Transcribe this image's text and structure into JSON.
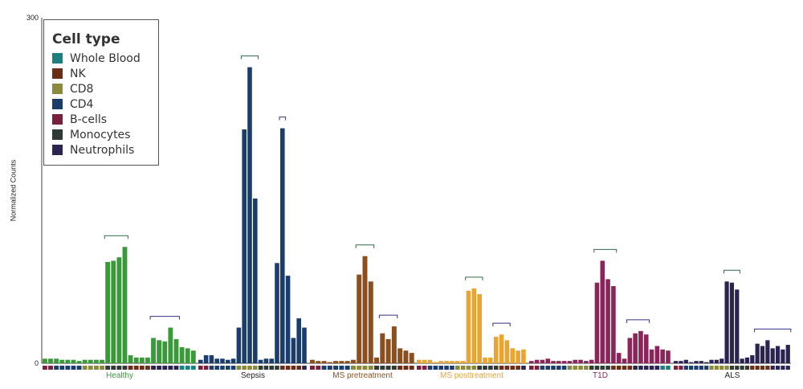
{
  "chart_data": {
    "type": "bar",
    "ylabel": "Normalized Counts",
    "ylim": [
      0,
      300
    ],
    "yticks": [
      "0",
      "300"
    ],
    "legend": {
      "title": "Cell type",
      "placement": "top-left",
      "items": [
        {
          "label": "Whole Blood",
          "color": "#1b8080"
        },
        {
          "label": "NK",
          "color": "#6b2d16"
        },
        {
          "label": "CD8",
          "color": "#8a8a3a"
        },
        {
          "label": "CD4",
          "color": "#1a3d6b"
        },
        {
          "label": "B-cells",
          "color": "#7a1f3d"
        },
        {
          "label": "Monocytes",
          "color": "#2e3a33"
        },
        {
          "label": "Neutrophils",
          "color": "#2b2450"
        }
      ]
    },
    "cell_type_strip": [
      "B-cells",
      "B-cells",
      "CD4",
      "CD4",
      "CD4",
      "CD4",
      "CD4",
      "CD8",
      "CD8",
      "CD8",
      "CD8",
      "Monocytes",
      "Monocytes",
      "Monocytes",
      "Monocytes",
      "NK",
      "NK",
      "NK",
      "NK",
      "Neutrophils",
      "Neutrophils",
      "Neutrophils",
      "Neutrophils",
      "Neutrophils",
      "Whole Blood",
      "Whole Blood",
      "Whole Blood",
      "Whole Blood",
      "Whole Blood",
      "Whole Blood"
    ],
    "groups": [
      {
        "name": "Healthy",
        "color": "#3a9a3a",
        "label_color": "#3a9a3a",
        "values": [
          4,
          4,
          4,
          3,
          3,
          3,
          2,
          3,
          3,
          3,
          3,
          88,
          89,
          92,
          101,
          7,
          5,
          5,
          5,
          22,
          20,
          19,
          31,
          21,
          14,
          13,
          11,
          0,
          0,
          0
        ]
      },
      {
        "name": "Sepsis",
        "color": "#1a3d6b",
        "label_color": "#222222",
        "values": [
          3,
          7,
          7,
          4,
          4,
          3,
          4,
          31,
          203,
          257,
          143,
          3,
          4,
          4,
          87,
          204,
          76,
          22,
          39,
          31,
          0,
          0,
          0,
          0,
          0,
          0,
          0,
          0,
          0,
          0
        ]
      },
      {
        "name": "MS pretreatment",
        "color": "#8b4f1f",
        "label_color": "#8b4f1f",
        "values": [
          3,
          2,
          2,
          1,
          2,
          2,
          2,
          3,
          77,
          93,
          71,
          5,
          26,
          21,
          32,
          13,
          11,
          9,
          0,
          0,
          0,
          0,
          0,
          0,
          0,
          0,
          0,
          0,
          0,
          0
        ]
      },
      {
        "name": "MS posttreatment",
        "color": "#e8a531",
        "label_color": "#e8a531",
        "values": [
          3,
          3,
          3,
          1,
          2,
          2,
          2,
          2,
          2,
          63,
          65,
          60,
          5,
          5,
          23,
          25,
          20,
          13,
          11,
          12,
          0,
          0,
          0,
          0,
          0,
          0,
          0,
          0,
          0,
          0
        ]
      },
      {
        "name": "T1D",
        "color": "#8b2458",
        "label_color": "#8b2458",
        "values": [
          2,
          3,
          3,
          4,
          2,
          2,
          2,
          2,
          3,
          3,
          2,
          3,
          70,
          89,
          73,
          67,
          9,
          4,
          22,
          26,
          28,
          25,
          12,
          15,
          12,
          11,
          0,
          0,
          0,
          0
        ]
      },
      {
        "name": "ALS",
        "color": "#2b2450",
        "label_color": "#222222",
        "values": [
          2,
          2,
          3,
          1,
          2,
          2,
          1,
          3,
          3,
          4,
          71,
          70,
          64,
          4,
          5,
          7,
          17,
          15,
          20,
          13,
          15,
          12,
          16,
          0,
          0,
          0,
          0,
          0,
          0,
          0
        ]
      }
    ]
  }
}
